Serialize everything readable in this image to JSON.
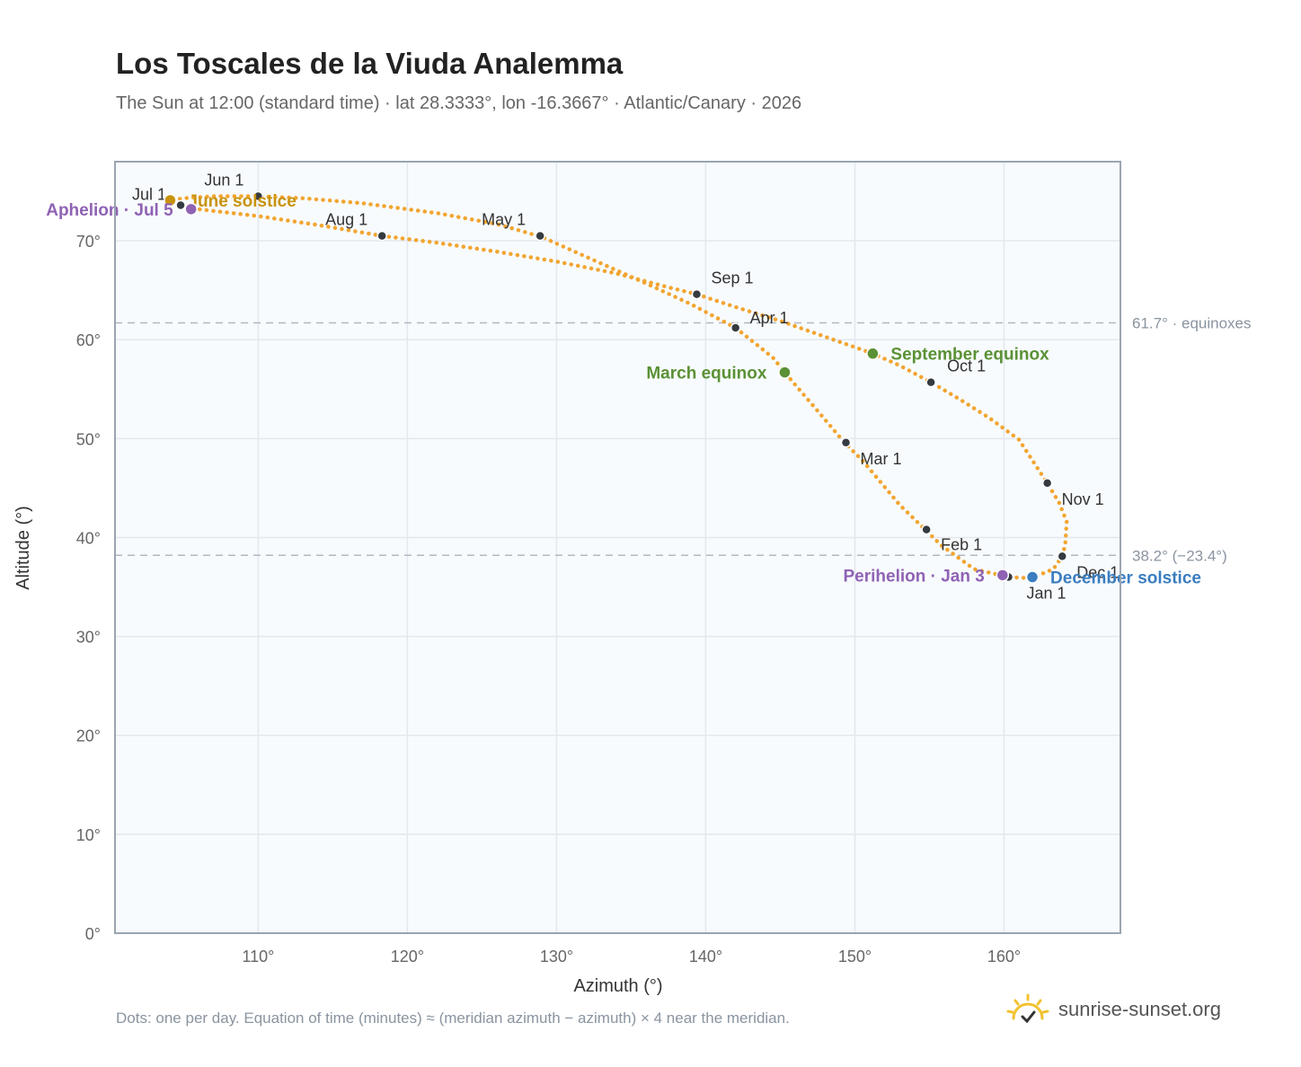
{
  "title": "Los Toscales de la Viuda Analemma",
  "subtitle": "The Sun at 12:00 (standard time) · lat 28.3333°, lon -16.3667° · Atlantic/Canary · 2026",
  "footnote": "Dots: one per day. Equation of time (minutes) ≈ (meridian azimuth − azimuth) × 4 near the meridian.",
  "brand": "sunrise-sunset.org",
  "colors": {
    "curve": "#f2a531",
    "month_dot": "#343a40",
    "equinox": "#5a9135",
    "june_solstice": "#c8930c",
    "december_solstice": "#3a7dc0",
    "apsis": "#8f62b4",
    "grid": "#e3e8ee",
    "plot_bg": "#f8fbfd",
    "axis": "#9aa5b1",
    "refline": "#b0b8c2"
  },
  "chart_data": {
    "type": "scatter",
    "xlabel": "Azimuth (°)",
    "ylabel": "Altitude (°)",
    "xlim": [
      100.4,
      167.8
    ],
    "ylim": [
      0,
      78
    ],
    "xticks": [
      110,
      120,
      130,
      140,
      150,
      160
    ],
    "xtick_labels": [
      "110°",
      "120°",
      "130°",
      "140°",
      "150°",
      "160°"
    ],
    "yticks": [
      0,
      10,
      20,
      30,
      40,
      50,
      60,
      70
    ],
    "ytick_labels": [
      "0°",
      "10°",
      "20°",
      "30°",
      "40°",
      "50°",
      "60°",
      "70°"
    ],
    "grid": true,
    "analemma_path": [
      [
        160.3,
        36.0
      ],
      [
        158.0,
        36.8
      ],
      [
        155.8,
        39.2
      ],
      [
        153.0,
        43.3
      ],
      [
        150.5,
        47.8
      ],
      [
        149.3,
        49.6
      ],
      [
        147.5,
        52.8
      ],
      [
        145.8,
        55.8
      ],
      [
        144.5,
        58.2
      ],
      [
        142.0,
        61.2
      ],
      [
        139.0,
        63.6
      ],
      [
        136.0,
        65.7
      ],
      [
        133.0,
        67.7
      ],
      [
        129.0,
        70.4
      ],
      [
        126.0,
        71.7
      ],
      [
        122.0,
        72.8
      ],
      [
        117.0,
        73.8
      ],
      [
        113.0,
        74.3
      ],
      [
        110.0,
        74.5
      ],
      [
        107.0,
        74.5
      ],
      [
        105.0,
        74.3
      ],
      [
        104.1,
        74.1
      ],
      [
        104.8,
        73.6
      ],
      [
        106.0,
        73.2
      ],
      [
        110.0,
        72.5
      ],
      [
        114.0,
        71.6
      ],
      [
        118.3,
        70.5
      ],
      [
        122.0,
        69.8
      ],
      [
        126.0,
        68.9
      ],
      [
        130.0,
        67.9
      ],
      [
        134.0,
        66.7
      ],
      [
        137.5,
        65.3
      ],
      [
        139.4,
        64.6
      ],
      [
        142.0,
        63.3
      ],
      [
        145.0,
        61.9
      ],
      [
        148.0,
        60.3
      ],
      [
        151.2,
        58.6
      ],
      [
        153.0,
        57.4
      ],
      [
        155.1,
        55.7
      ],
      [
        157.0,
        54.0
      ],
      [
        159.0,
        52.1
      ],
      [
        161.0,
        49.9
      ],
      [
        162.9,
        45.5
      ],
      [
        163.7,
        43.5
      ],
      [
        164.2,
        41.6
      ],
      [
        164.1,
        39.3
      ],
      [
        163.9,
        38.1
      ],
      [
        163.3,
        36.8
      ],
      [
        162.0,
        36.0
      ],
      [
        161.5,
        35.9
      ],
      [
        160.3,
        36.0
      ]
    ],
    "month_points": [
      {
        "label": "Jan 1",
        "x": 160.3,
        "y": 36.0
      },
      {
        "label": "Feb 1",
        "x": 154.8,
        "y": 40.8
      },
      {
        "label": "Mar 1",
        "x": 149.4,
        "y": 49.6
      },
      {
        "label": "Apr 1",
        "x": 142.0,
        "y": 61.2
      },
      {
        "label": "May 1",
        "x": 128.9,
        "y": 70.5
      },
      {
        "label": "Jun 1",
        "x": 110.0,
        "y": 74.5
      },
      {
        "label": "Jul 1",
        "x": 104.8,
        "y": 73.6
      },
      {
        "label": "Aug 1",
        "x": 118.3,
        "y": 70.5
      },
      {
        "label": "Sep 1",
        "x": 139.4,
        "y": 64.6
      },
      {
        "label": "Oct 1",
        "x": 155.1,
        "y": 55.7
      },
      {
        "label": "Nov 1",
        "x": 162.9,
        "y": 45.5
      },
      {
        "label": "Dec 1",
        "x": 163.9,
        "y": 38.1
      }
    ],
    "events": [
      {
        "label": "March equinox",
        "x": 145.3,
        "y": 56.7,
        "color_key": "equinox",
        "side": "left"
      },
      {
        "label": "September equinox",
        "x": 151.2,
        "y": 58.6,
        "color_key": "equinox",
        "side": "right"
      },
      {
        "label": "June solstice",
        "x": 104.1,
        "y": 74.1,
        "color_key": "june_solstice",
        "side": "right"
      },
      {
        "label": "December solstice",
        "x": 161.9,
        "y": 36.0,
        "color_key": "december_solstice",
        "side": "right"
      },
      {
        "label": "Aphelion · Jul 5",
        "x": 105.5,
        "y": 73.2,
        "color_key": "apsis",
        "side": "left"
      },
      {
        "label": "Perihelion · Jan 3",
        "x": 159.9,
        "y": 36.2,
        "color_key": "apsis",
        "side": "left"
      }
    ],
    "reference_lines": [
      {
        "y": 61.7,
        "label": "61.7° · equinoxes"
      },
      {
        "y": 38.2,
        "label": "38.2° (−23.4°)"
      }
    ]
  }
}
